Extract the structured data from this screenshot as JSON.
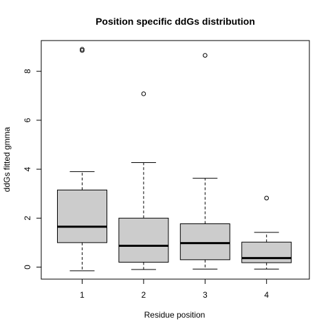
{
  "chart_data": {
    "type": "boxplot",
    "title": "Position specific ddGs distribution",
    "xlabel": "Residue position",
    "ylabel": "ddGs fitted gmma",
    "categories": [
      "1",
      "2",
      "3",
      "4"
    ],
    "ylim": [
      -0.5,
      9.3
    ],
    "yticks": [
      0,
      2,
      4,
      6,
      8
    ],
    "yticklabels": [
      "0",
      "2",
      "4",
      "6",
      "8"
    ],
    "grid": false,
    "box_color": "#cccccc",
    "boxes": [
      {
        "category": "1",
        "whisker_low": -0.15,
        "q1": 1.0,
        "median": 1.65,
        "q3": 3.15,
        "whisker_high": 3.9,
        "outliers": [
          8.85,
          8.9
        ]
      },
      {
        "category": "2",
        "whisker_low": -0.1,
        "q1": 0.2,
        "median": 0.87,
        "q3": 2.0,
        "whisker_high": 4.27,
        "outliers": [
          7.08
        ]
      },
      {
        "category": "3",
        "whisker_low": -0.08,
        "q1": 0.3,
        "median": 0.98,
        "q3": 1.77,
        "whisker_high": 3.63,
        "outliers": [
          8.65
        ]
      },
      {
        "category": "4",
        "whisker_low": -0.08,
        "q1": 0.18,
        "median": 0.37,
        "q3": 1.02,
        "whisker_high": 1.42,
        "outliers": [
          2.82
        ]
      }
    ]
  }
}
